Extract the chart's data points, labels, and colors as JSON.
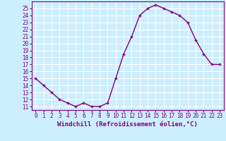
{
  "x": [
    0,
    1,
    2,
    3,
    4,
    5,
    6,
    7,
    8,
    9,
    10,
    11,
    12,
    13,
    14,
    15,
    16,
    17,
    18,
    19,
    20,
    21,
    22,
    23
  ],
  "y": [
    15,
    14,
    13,
    12,
    11.5,
    11,
    11.5,
    11,
    11,
    11.5,
    15,
    18.5,
    21,
    24,
    25,
    25.5,
    25,
    24.5,
    24,
    23,
    20.5,
    18.5,
    17,
    17
  ],
  "line_color": "#800080",
  "marker": "+",
  "marker_color": "#800080",
  "bg_color": "#cceeff",
  "grid_color": "#ffffff",
  "xlabel": "Windchill (Refroidissement éolien,°C)",
  "xlim": [
    -0.5,
    23.5
  ],
  "ylim": [
    10.5,
    26
  ],
  "yticks": [
    11,
    12,
    13,
    14,
    15,
    16,
    17,
    18,
    19,
    20,
    21,
    22,
    23,
    24,
    25
  ],
  "xticks": [
    0,
    1,
    2,
    3,
    4,
    5,
    6,
    7,
    8,
    9,
    10,
    11,
    12,
    13,
    14,
    15,
    16,
    17,
    18,
    19,
    20,
    21,
    22,
    23
  ],
  "xlabel_fontsize": 6.5,
  "tick_fontsize": 5.5,
  "linewidth": 1.0,
  "markersize": 3.5
}
